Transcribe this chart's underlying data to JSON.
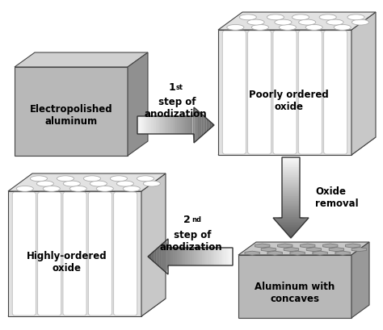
{
  "bg_color": "#ffffff",
  "text_color": "#000000",
  "labels": {
    "electropolished": "Electropolished\naluminum",
    "poorly_ordered": "Poorly ordered\noxide",
    "highly_ordered": "Highly-ordered\noxide",
    "aluminum_concaves": "Aluminum with\nconcaves",
    "step1_sup": "st",
    "step1": " step of\nanodization",
    "step2_sup": "nd",
    "step2": " step of\nanodization",
    "oxide_removal": "Oxide\nremoval"
  },
  "figsize": [
    4.74,
    4.09
  ],
  "dpi": 100
}
